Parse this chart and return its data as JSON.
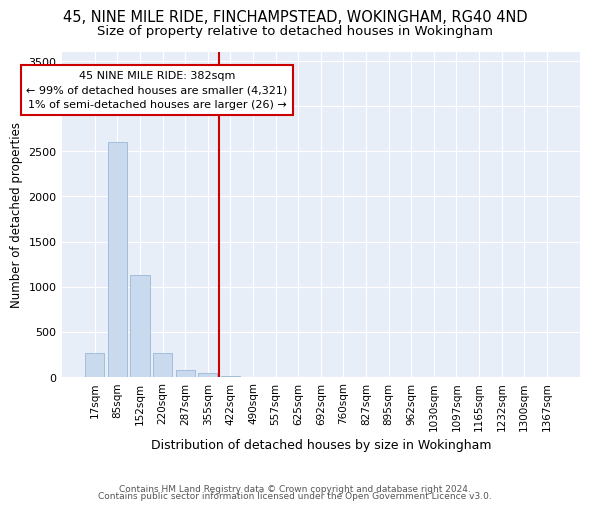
{
  "title_line1": "45, NINE MILE RIDE, FINCHAMPSTEAD, WOKINGHAM, RG40 4ND",
  "title_line2": "Size of property relative to detached houses in Wokingham",
  "xlabel": "Distribution of detached houses by size in Wokingham",
  "ylabel": "Number of detached properties",
  "footer_line1": "Contains HM Land Registry data © Crown copyright and database right 2024.",
  "footer_line2": "Contains public sector information licensed under the Open Government Licence v3.0.",
  "bar_labels": [
    "17sqm",
    "85sqm",
    "152sqm",
    "220sqm",
    "287sqm",
    "355sqm",
    "422sqm",
    "490sqm",
    "557sqm",
    "625sqm",
    "692sqm",
    "760sqm",
    "827sqm",
    "895sqm",
    "962sqm",
    "1030sqm",
    "1097sqm",
    "1165sqm",
    "1232sqm",
    "1300sqm",
    "1367sqm"
  ],
  "bar_values": [
    270,
    2600,
    1130,
    270,
    80,
    50,
    15,
    3,
    0,
    0,
    0,
    0,
    0,
    0,
    0,
    0,
    0,
    0,
    0,
    0,
    0
  ],
  "bar_color": "#c9d9ee",
  "bar_edgecolor": "#9ab8d8",
  "vline_color": "#cc0000",
  "vline_x": 5.5,
  "annotation_text_line1": "45 NINE MILE RIDE: 382sqm",
  "annotation_text_line2": "← 99% of detached houses are smaller (4,321)",
  "annotation_text_line3": "1% of semi-detached houses are larger (26) →",
  "ylim": [
    0,
    3600
  ],
  "yticks": [
    0,
    500,
    1000,
    1500,
    2000,
    2500,
    3000,
    3500
  ],
  "bg_color": "#e8eef8",
  "grid_color": "#ffffff",
  "title_fontsize": 10.5,
  "subtitle_fontsize": 9.5,
  "ylabel_fontsize": 8.5,
  "xlabel_fontsize": 9,
  "tick_fontsize": 8,
  "xtick_fontsize": 7.5,
  "annotation_fontsize": 8,
  "footer_fontsize": 6.5
}
